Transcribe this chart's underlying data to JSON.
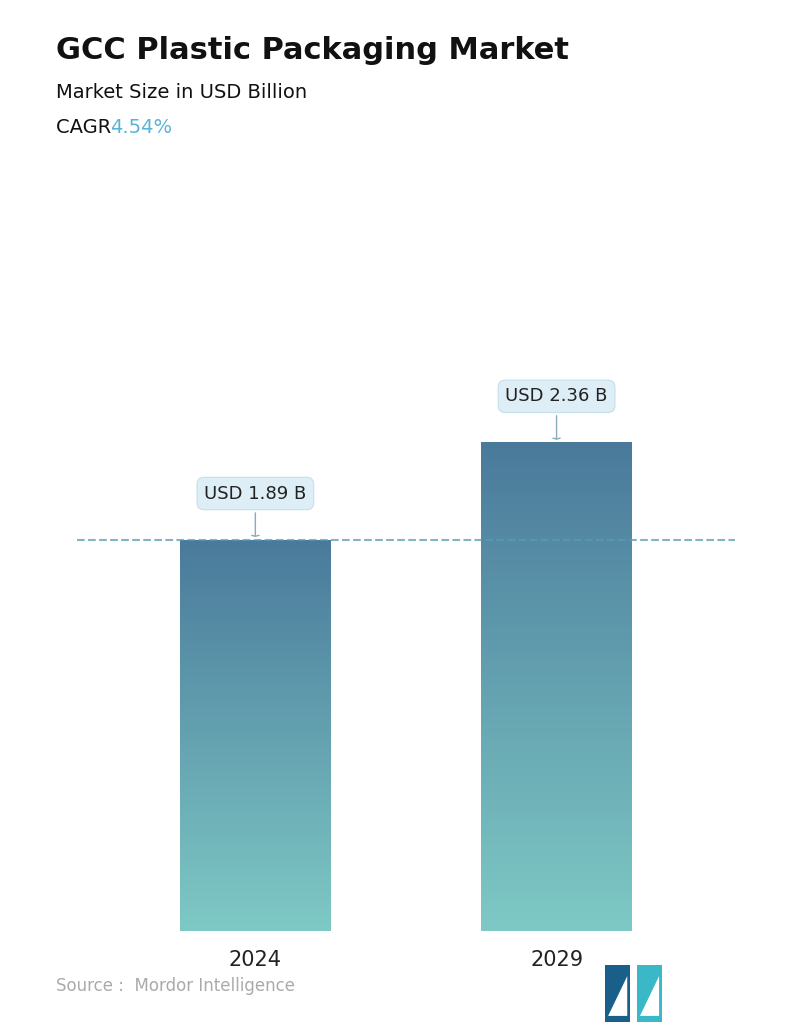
{
  "title": "GCC Plastic Packaging Market",
  "subtitle": "Market Size in USD Billion",
  "cagr_label": "CAGR ",
  "cagr_value": "4.54%",
  "cagr_color": "#5ab4d4",
  "categories": [
    "2024",
    "2029"
  ],
  "values": [
    1.89,
    2.36
  ],
  "labels": [
    "USD 1.89 B",
    "USD 2.36 B"
  ],
  "color_top": "#4a7a9b",
  "color_bottom": "#7ec9c5",
  "dashed_line_color": "#5a9ab5",
  "source_text": "Source :  Mordor Intelligence",
  "source_color": "#aaaaaa",
  "background_color": "#ffffff",
  "title_fontsize": 22,
  "subtitle_fontsize": 14,
  "cagr_fontsize": 14,
  "label_fontsize": 13,
  "tick_fontsize": 15,
  "source_fontsize": 12,
  "ylim": [
    0,
    3.0
  ],
  "bar_width": 0.22,
  "x_positions": [
    0.28,
    0.72
  ]
}
